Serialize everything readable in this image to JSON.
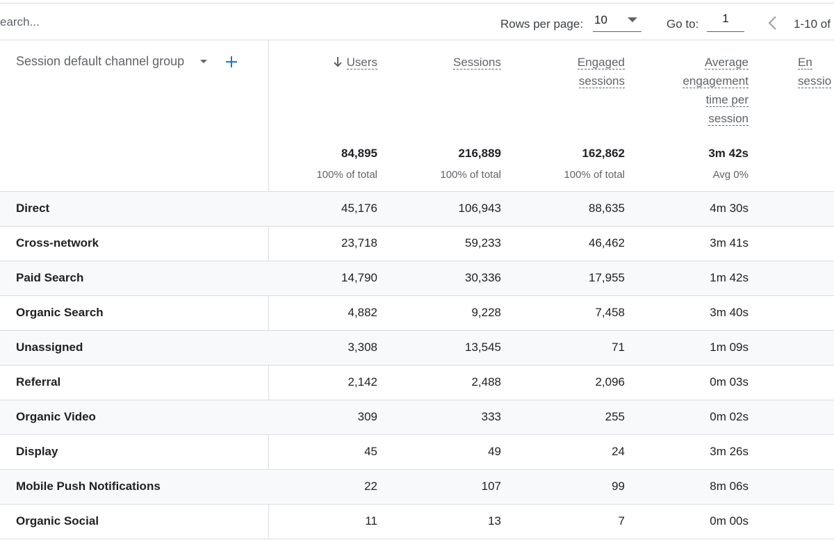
{
  "toolbar": {
    "search_text": "earch...",
    "rows_per_page_label": "Rows per page:",
    "rows_per_page_value": "10",
    "goto_label": "Go to:",
    "goto_value": "1",
    "range_text": "1-10 of"
  },
  "header": {
    "dimension_label": "Session default channel group",
    "columns": [
      {
        "label_lines": [
          "Users"
        ],
        "sorted": "descending"
      },
      {
        "label_lines": [
          "Sessions"
        ]
      },
      {
        "label_lines": [
          "Engaged",
          "sessions"
        ]
      },
      {
        "label_lines": [
          "Average",
          "engagement",
          "time per",
          "session"
        ]
      },
      {
        "label_lines": [
          "En",
          "sessio"
        ]
      }
    ]
  },
  "totals": {
    "values": [
      "84,895",
      "216,889",
      "162,862",
      "3m 42s"
    ],
    "subs": [
      "100% of total",
      "100% of total",
      "100% of total",
      "Avg 0%"
    ]
  },
  "rows": [
    {
      "name": "Direct",
      "values": [
        "45,176",
        "106,943",
        "88,635",
        "4m 30s"
      ]
    },
    {
      "name": "Cross-network",
      "values": [
        "23,718",
        "59,233",
        "46,462",
        "3m 41s"
      ]
    },
    {
      "name": "Paid Search",
      "values": [
        "14,790",
        "30,336",
        "17,955",
        "1m 42s"
      ]
    },
    {
      "name": "Organic Search",
      "values": [
        "4,882",
        "9,228",
        "7,458",
        "3m 40s"
      ]
    },
    {
      "name": "Unassigned",
      "values": [
        "3,308",
        "13,545",
        "71",
        "1m 09s"
      ]
    },
    {
      "name": "Referral",
      "values": [
        "2,142",
        "2,488",
        "2,096",
        "0m 03s"
      ]
    },
    {
      "name": "Organic Video",
      "values": [
        "309",
        "333",
        "255",
        "0m 02s"
      ]
    },
    {
      "name": "Display",
      "values": [
        "45",
        "49",
        "24",
        "3m 26s"
      ]
    },
    {
      "name": "Mobile Push Notifications",
      "values": [
        "22",
        "107",
        "99",
        "8m 06s"
      ]
    },
    {
      "name": "Organic Social",
      "values": [
        "11",
        "13",
        "7",
        "0m 00s"
      ]
    }
  ],
  "colors": {
    "accent": "#1a73e8",
    "divider": "#dadce0",
    "row_shade": "#f8f9fa",
    "text": "#202124",
    "muted": "#5f6368"
  },
  "icons": {
    "sort": "arrow-down-icon",
    "add": "plus-icon",
    "prev": "chevron-left-icon",
    "dropdown": "caret-down-icon"
  }
}
